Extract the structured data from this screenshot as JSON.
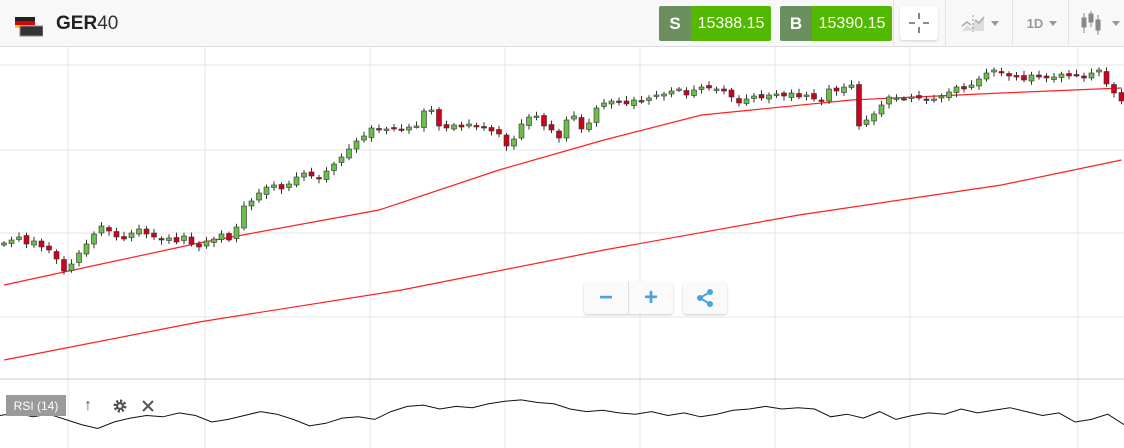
{
  "header": {
    "instrument_bold": "GER",
    "instrument_rest": "40",
    "sell": {
      "label": "S",
      "price": "15388.15"
    },
    "buy": {
      "label": "B",
      "price": "15390.15"
    },
    "crosshair_icon": "crosshair-icon",
    "chart_type_icon": "area-chart-icon",
    "timeframe": "1D",
    "candle_icon": "candlestick-icon"
  },
  "controls": {
    "zoom_out": "−",
    "zoom_in": "+",
    "share_icon": "share-icon"
  },
  "indicator": {
    "label": "RSI (14)",
    "icons": [
      "arrow-up-icon",
      "gear-icon",
      "close-icon"
    ]
  },
  "colors": {
    "up": "#6abf4b",
    "down": "#d0021b",
    "ma": "#ff2020",
    "buy_sell": "#52b800"
  },
  "chart_data": {
    "type": "candlestick",
    "closes": [
      13060,
      13090,
      13120,
      13050,
      13080,
      13020,
      12990,
      12900,
      12780,
      12850,
      12960,
      13050,
      13150,
      13230,
      13180,
      13120,
      13100,
      13160,
      13200,
      13150,
      13120,
      13090,
      13110,
      13070,
      13130,
      13050,
      13020,
      13080,
      13100,
      13150,
      13090,
      13220,
      13430,
      13480,
      13560,
      13620,
      13640,
      13600,
      13650,
      13720,
      13760,
      13730,
      13700,
      13780,
      13850,
      13920,
      14000,
      14080,
      14130,
      14210,
      14190,
      14200,
      14210,
      14190,
      14220,
      14230,
      14380,
      14390,
      14230,
      14210,
      14240,
      14220,
      14250,
      14230,
      14210,
      14180,
      14150,
      14030,
      14100,
      14250,
      14320,
      14330,
      14230,
      14190,
      14110,
      14290,
      14330,
      14200,
      14260,
      14410,
      14460,
      14480,
      14470,
      14450,
      14490,
      14480,
      14510,
      14540,
      14550,
      14580,
      14600,
      14540,
      14590,
      14620,
      14610,
      14600,
      14580,
      14520,
      14460,
      14500,
      14530,
      14510,
      14540,
      14550,
      14530,
      14560,
      14520,
      14540,
      14500,
      14480,
      14600,
      14580,
      14620,
      14640,
      14230,
      14290,
      14350,
      14440,
      14520,
      14510,
      14500,
      14520,
      14510,
      14490,
      14500,
      14530,
      14570,
      14620,
      14600,
      14640,
      14700,
      14760,
      14790,
      14760,
      14730,
      14720,
      14690,
      14740,
      14720,
      14710,
      14720,
      14750,
      14730,
      14740,
      14710,
      14760,
      14790,
      14650,
      14560,
      14480
    ],
    "ma_fast": [
      [
        0,
        12640
      ],
      [
        26,
        13060
      ],
      [
        50,
        13390
      ],
      [
        66,
        13790
      ],
      [
        80,
        14090
      ],
      [
        93,
        14340
      ],
      [
        113,
        14490
      ],
      [
        133,
        14560
      ],
      [
        149,
        14610
      ]
    ],
    "ma_slow": [
      [
        0,
        11890
      ],
      [
        26,
        12270
      ],
      [
        53,
        12590
      ],
      [
        80,
        12990
      ],
      [
        106,
        13340
      ],
      [
        133,
        13640
      ],
      [
        149,
        13890
      ]
    ],
    "rsi": [
      55,
      57,
      54,
      56,
      52,
      48,
      45,
      50,
      53,
      55,
      54,
      57,
      55,
      50,
      52,
      55,
      58,
      56,
      52,
      47,
      49,
      53,
      54,
      52,
      58,
      62,
      63,
      60,
      62,
      61,
      64,
      66,
      67,
      65,
      64,
      60,
      58,
      59,
      57,
      56,
      58,
      55,
      57,
      54,
      56,
      59,
      60,
      62,
      60,
      61,
      60,
      54,
      56,
      53,
      58,
      52,
      55,
      57,
      56,
      60,
      57,
      59,
      61,
      58,
      55,
      57,
      50,
      52,
      56,
      48
    ]
  }
}
